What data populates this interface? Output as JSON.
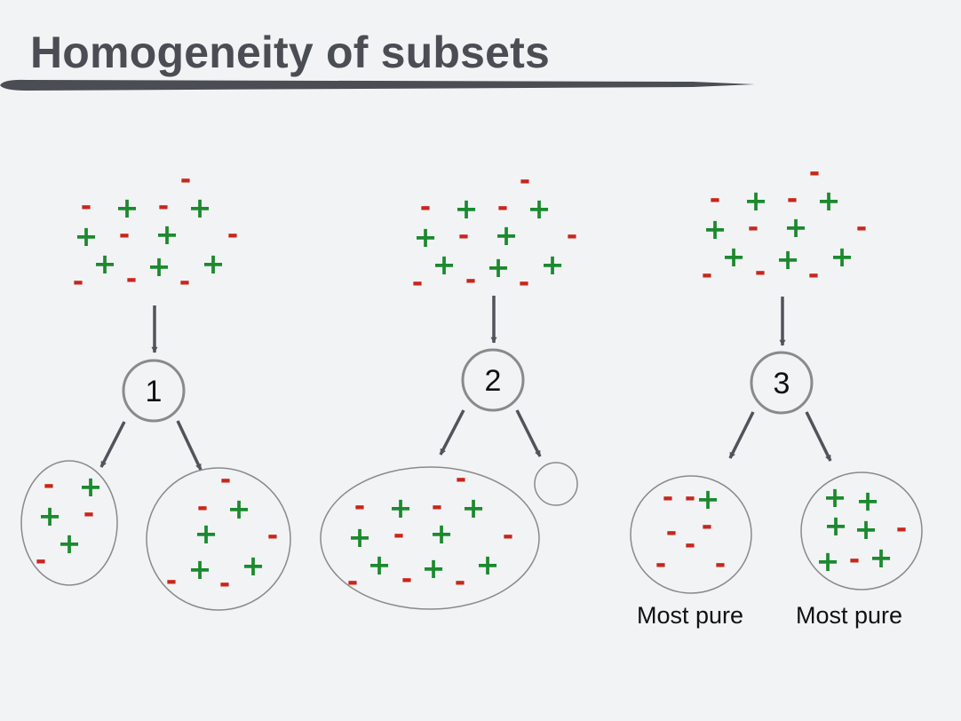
{
  "slide": {
    "title": "Homogeneity of subsets"
  },
  "colors": {
    "plus": "#1b8a2e",
    "minus": "#c8261b",
    "arrow": "#50545a",
    "circle": "#8a8a8a"
  },
  "symbols": {
    "plus": "+",
    "minus": "-"
  },
  "splits": [
    {
      "node_label": "1",
      "children": [
        {
          "plus": 3,
          "minus": 3,
          "caption": ""
        },
        {
          "plus": 4,
          "minus": 5,
          "caption": ""
        }
      ]
    },
    {
      "node_label": "2",
      "children": [
        {
          "plus": 7,
          "minus": 8,
          "caption": ""
        },
        {
          "plus": 0,
          "minus": 0,
          "caption": ""
        }
      ]
    },
    {
      "node_label": "3",
      "children": [
        {
          "plus": 1,
          "minus": 7,
          "caption": "Most pure"
        },
        {
          "plus": 6,
          "minus": 2,
          "caption": "Most pure"
        }
      ]
    }
  ]
}
